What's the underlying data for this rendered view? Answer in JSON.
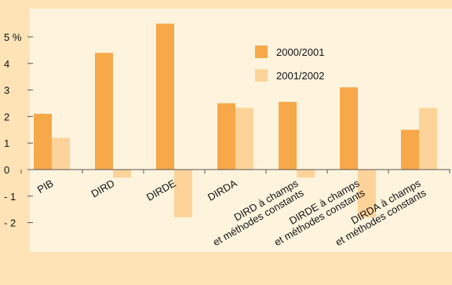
{
  "chart_data": {
    "type": "bar",
    "categories": [
      [
        "PIB"
      ],
      [
        "DIRD"
      ],
      [
        "DIRDE"
      ],
      [
        "DIRDA"
      ],
      [
        "DIRD à champs",
        "et méthodes constants"
      ],
      [
        "DIRDE à champs",
        "et méthodes constants"
      ],
      [
        "DIRDA à champs",
        "et méthodes constants"
      ]
    ],
    "series": [
      {
        "name": "2000/2001",
        "values": [
          2.1,
          4.4,
          5.5,
          2.5,
          2.55,
          3.1,
          1.5
        ]
      },
      {
        "name": "2001/2002",
        "values": [
          1.2,
          -0.3,
          -1.8,
          2.33,
          -0.3,
          -1.8,
          2.33
        ]
      }
    ],
    "yticks": [
      {
        "value": 5,
        "label": "5 %"
      },
      {
        "value": 4,
        "label": "4"
      },
      {
        "value": 3,
        "label": "3"
      },
      {
        "value": 2,
        "label": "2"
      },
      {
        "value": 1,
        "label": "1"
      },
      {
        "value": 0,
        "label": "0"
      },
      {
        "value": -1,
        "label": "- 1"
      },
      {
        "value": -2,
        "label": "- 2"
      }
    ],
    "ylim": [
      -3,
      6
    ],
    "grid": false,
    "legend": "top-right",
    "title": "",
    "xlabel": "",
    "ylabel": "",
    "colors": {
      "series": [
        "#f7a848",
        "#fdd39a"
      ],
      "plot_background": "#fef4de",
      "page_background": "#fde3b6",
      "axis": "#555555",
      "text": "#111111"
    }
  }
}
